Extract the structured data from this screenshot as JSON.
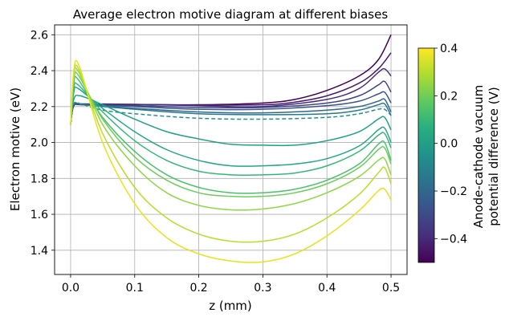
{
  "chart_data": {
    "type": "line",
    "title": "Average electron motive diagram at different biases",
    "xlabel": "z (mm)",
    "ylabel": "Electron motive (eV)",
    "xlim": [
      -0.025,
      0.525
    ],
    "ylim": [
      1.265,
      2.655
    ],
    "xticks": [
      0.0,
      0.1,
      0.2,
      0.3,
      0.4,
      0.5
    ],
    "xtick_labels": [
      "0.0",
      "0.1",
      "0.2",
      "0.3",
      "0.4",
      "0.5"
    ],
    "yticks": [
      1.4,
      1.6,
      1.8,
      2.0,
      2.2,
      2.4,
      2.6
    ],
    "ytick_labels": [
      "1.4",
      "1.6",
      "1.8",
      "2.0",
      "2.2",
      "2.4",
      "2.6"
    ],
    "grid": true,
    "colorbar": {
      "label": "Anode-cathode vacuum potential difference (V)",
      "colormap": "viridis",
      "range": [
        -0.5,
        0.4
      ],
      "ticks": [
        0.4,
        0.2,
        0.0,
        -0.2,
        -0.4
      ],
      "tick_labels": [
        "0.4",
        "0.2",
        "0.0",
        "−0.2",
        "−0.4"
      ]
    },
    "series": [
      {
        "bias": -0.5,
        "color": "#440154",
        "style": "solid",
        "x": [
          0.0,
          0.005,
          0.02,
          0.1,
          0.2,
          0.3,
          0.35,
          0.4,
          0.45,
          0.48,
          0.5
        ],
        "y": [
          2.1,
          2.205,
          2.21,
          2.212,
          2.21,
          2.22,
          2.24,
          2.29,
          2.37,
          2.46,
          2.6
        ]
      },
      {
        "bias": -0.45,
        "color": "#481a6c",
        "style": "solid",
        "x": [
          0.0,
          0.005,
          0.02,
          0.1,
          0.2,
          0.3,
          0.35,
          0.4,
          0.45,
          0.48,
          0.5
        ],
        "y": [
          2.1,
          2.205,
          2.212,
          2.212,
          2.208,
          2.21,
          2.225,
          2.26,
          2.33,
          2.41,
          2.5
        ]
      },
      {
        "bias": -0.4,
        "color": "#472f7d",
        "style": "solid",
        "x": [
          0.0,
          0.005,
          0.02,
          0.1,
          0.2,
          0.3,
          0.4,
          0.45,
          0.48,
          0.49,
          0.5
        ],
        "y": [
          2.1,
          2.21,
          2.215,
          2.212,
          2.205,
          2.2,
          2.24,
          2.3,
          2.39,
          2.41,
          2.37
        ]
      },
      {
        "bias": -0.3,
        "color": "#414487",
        "style": "solid",
        "x": [
          0.0,
          0.005,
          0.02,
          0.1,
          0.2,
          0.3,
          0.4,
          0.45,
          0.48,
          0.49,
          0.5
        ],
        "y": [
          2.1,
          2.21,
          2.212,
          2.205,
          2.195,
          2.195,
          2.22,
          2.26,
          2.32,
          2.34,
          2.28
        ]
      },
      {
        "bias": -0.2,
        "color": "#39568c",
        "style": "solid",
        "x": [
          0.0,
          0.005,
          0.02,
          0.1,
          0.2,
          0.3,
          0.4,
          0.45,
          0.48,
          0.49,
          0.5
        ],
        "y": [
          2.1,
          2.215,
          2.212,
          2.2,
          2.185,
          2.185,
          2.205,
          2.23,
          2.27,
          2.28,
          2.22
        ]
      },
      {
        "bias": -0.1,
        "color": "#31688e",
        "style": "solid",
        "x": [
          0.0,
          0.005,
          0.02,
          0.1,
          0.2,
          0.3,
          0.4,
          0.45,
          0.48,
          0.49,
          0.5
        ],
        "y": [
          2.1,
          2.215,
          2.21,
          2.19,
          2.17,
          2.165,
          2.18,
          2.2,
          2.23,
          2.24,
          2.17
        ]
      },
      {
        "bias": -0.05,
        "color": "#2a788e",
        "style": "solid",
        "x": [
          0.0,
          0.005,
          0.02,
          0.1,
          0.2,
          0.3,
          0.4,
          0.45,
          0.48,
          0.49,
          0.5
        ],
        "y": [
          2.1,
          2.215,
          2.21,
          2.185,
          2.16,
          2.155,
          2.16,
          2.18,
          2.21,
          2.215,
          2.15
        ]
      },
      {
        "bias": 0.0,
        "color": "#21918c",
        "style": "dashed",
        "x": [
          0.0,
          0.005,
          0.02,
          0.05,
          0.1,
          0.2,
          0.3,
          0.4,
          0.45,
          0.48,
          0.49,
          0.5
        ],
        "y": [
          2.1,
          2.215,
          2.21,
          2.18,
          2.16,
          2.135,
          2.13,
          2.14,
          2.16,
          2.185,
          2.185,
          2.15
        ]
      },
      {
        "bias": 0.05,
        "color": "#1fa187",
        "style": "solid",
        "x": [
          0.0,
          0.005,
          0.015,
          0.05,
          0.1,
          0.15,
          0.2,
          0.25,
          0.3,
          0.35,
          0.4,
          0.45,
          0.48,
          0.49,
          0.5
        ],
        "y": [
          2.1,
          2.24,
          2.26,
          2.21,
          2.13,
          2.06,
          2.02,
          1.99,
          1.985,
          1.985,
          2.01,
          2.06,
          2.13,
          2.14,
          2.07
        ]
      },
      {
        "bias": 0.1,
        "color": "#22a884",
        "style": "solid",
        "x": [
          0.0,
          0.005,
          0.012,
          0.05,
          0.1,
          0.15,
          0.2,
          0.25,
          0.3,
          0.35,
          0.4,
          0.45,
          0.48,
          0.49,
          0.5
        ],
        "y": [
          2.1,
          2.28,
          2.3,
          2.19,
          2.06,
          1.96,
          1.9,
          1.87,
          1.87,
          1.88,
          1.91,
          1.98,
          2.07,
          2.08,
          2.0
        ]
      },
      {
        "bias": 0.15,
        "color": "#35b779",
        "style": "solid",
        "x": [
          0.0,
          0.005,
          0.012,
          0.05,
          0.1,
          0.15,
          0.2,
          0.25,
          0.3,
          0.35,
          0.4,
          0.45,
          0.48,
          0.49,
          0.5
        ],
        "y": [
          2.1,
          2.3,
          2.32,
          2.17,
          2.01,
          1.9,
          1.84,
          1.82,
          1.82,
          1.83,
          1.87,
          1.95,
          2.04,
          2.05,
          1.97
        ]
      },
      {
        "bias": 0.2,
        "color": "#4ac16d",
        "style": "solid",
        "x": [
          0.0,
          0.005,
          0.012,
          0.05,
          0.1,
          0.15,
          0.2,
          0.25,
          0.3,
          0.35,
          0.4,
          0.45,
          0.48,
          0.49,
          0.5
        ],
        "y": [
          2.1,
          2.33,
          2.35,
          2.14,
          1.95,
          1.82,
          1.75,
          1.72,
          1.72,
          1.74,
          1.79,
          1.88,
          1.99,
          2.0,
          1.9
        ]
      },
      {
        "bias": 0.25,
        "color": "#6ccd5a",
        "style": "solid",
        "x": [
          0.0,
          0.005,
          0.013,
          0.05,
          0.1,
          0.15,
          0.2,
          0.25,
          0.3,
          0.35,
          0.4,
          0.45,
          0.48,
          0.49,
          0.5
        ],
        "y": [
          2.1,
          2.35,
          2.37,
          2.13,
          1.92,
          1.79,
          1.72,
          1.7,
          1.7,
          1.72,
          1.77,
          1.86,
          1.96,
          1.97,
          1.88
        ]
      },
      {
        "bias": 0.3,
        "color": "#8fd744",
        "style": "solid",
        "x": [
          0.0,
          0.005,
          0.013,
          0.05,
          0.1,
          0.15,
          0.2,
          0.25,
          0.3,
          0.35,
          0.4,
          0.45,
          0.48,
          0.49,
          0.5
        ],
        "y": [
          2.1,
          2.37,
          2.39,
          2.1,
          1.87,
          1.72,
          1.65,
          1.625,
          1.63,
          1.66,
          1.72,
          1.81,
          1.9,
          1.91,
          1.82
        ]
      },
      {
        "bias": 0.35,
        "color": "#b8de29",
        "style": "solid",
        "x": [
          0.0,
          0.005,
          0.014,
          0.05,
          0.1,
          0.15,
          0.2,
          0.25,
          0.3,
          0.35,
          0.4,
          0.45,
          0.48,
          0.49,
          0.5
        ],
        "y": [
          2.1,
          2.38,
          2.4,
          2.05,
          1.75,
          1.58,
          1.49,
          1.45,
          1.45,
          1.49,
          1.58,
          1.71,
          1.83,
          1.86,
          1.77
        ]
      },
      {
        "bias": 0.4,
        "color": "#e6e419",
        "style": "solid",
        "x": [
          0.0,
          0.005,
          0.014,
          0.05,
          0.1,
          0.15,
          0.2,
          0.25,
          0.3,
          0.35,
          0.4,
          0.45,
          0.48,
          0.49,
          0.5
        ],
        "y": [
          2.1,
          2.4,
          2.42,
          2.0,
          1.66,
          1.47,
          1.38,
          1.34,
          1.335,
          1.38,
          1.48,
          1.62,
          1.73,
          1.74,
          1.68
        ]
      }
    ]
  }
}
